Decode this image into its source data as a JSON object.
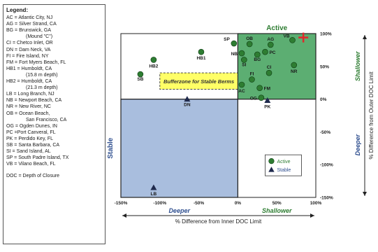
{
  "legend": {
    "title": "Legend:",
    "entries": [
      {
        "text": "AC = Atlantic City, NJ",
        "indent": false
      },
      {
        "text": "AG = Silver Strand, CA",
        "indent": false
      },
      {
        "text": "BG = Brunswick, GA",
        "indent": false
      },
      {
        "text": "(Mound \"C\")",
        "indent": true
      },
      {
        "text": "CI = Chetco Inlet, OR",
        "indent": false
      },
      {
        "text": "DN = Dam Neck, VA",
        "indent": false
      },
      {
        "text": "FI = Fire Island, NY",
        "indent": false
      },
      {
        "text": "FM = Fort Myers Beach, FL",
        "indent": false
      },
      {
        "text": "HB1 = Humboldt, CA",
        "indent": false
      },
      {
        "text": "(15.8 m depth)",
        "indent": true
      },
      {
        "text": "HB2 = Humboldt, CA",
        "indent": false
      },
      {
        "text": "(21.3 m depth)",
        "indent": true
      },
      {
        "text": "LB = Long Branch, NJ",
        "indent": false
      },
      {
        "text": "NB = Newport Beach, CA",
        "indent": false
      },
      {
        "text": "NR = New River, NC",
        "indent": false
      },
      {
        "text": "OB = Ocean Beach,",
        "indent": false
      },
      {
        "text": "San Francisco, CA",
        "indent": true
      },
      {
        "text": "OG = Ogden Dunes, IN",
        "indent": false
      },
      {
        "text": "PC =Port Canveral, FL",
        "indent": false
      },
      {
        "text": "PK = Perdido Key, FL",
        "indent": false
      },
      {
        "text": "SB = Santa Barbara, CA",
        "indent": false
      },
      {
        "text": "SI = Sand Island, AL",
        "indent": false
      },
      {
        "text": "SP = South Padre Island, TX",
        "indent": false
      },
      {
        "text": "VB = Vilano Beach, FL",
        "indent": false
      }
    ],
    "doc_note": "DOC = Depth of Closure"
  },
  "chart_data": {
    "type": "scatter",
    "xlim": [
      -150,
      100
    ],
    "ylim": [
      -150,
      100
    ],
    "xticks": [
      "-150%",
      "-100%",
      "-50%",
      "0%",
      "50%",
      "100%"
    ],
    "yticks": [
      "100%",
      "50%",
      "0%",
      "-50%",
      "-100%",
      "-150%"
    ],
    "xlabel": "% Difference from Inner DOC Limit",
    "ylabel": "% Difference from Outer DOC Limit",
    "x_left_label": "Deeper",
    "x_right_label": "Shallower",
    "y_top_label": "Shallower",
    "y_bottom_label": "Deeper",
    "regions": [
      {
        "label": "Active",
        "x": [
          0,
          100
        ],
        "y": [
          0,
          100
        ],
        "color": "#5cae72"
      },
      {
        "label": "Stable",
        "x": [
          -150,
          0
        ],
        "y": [
          -150,
          0
        ],
        "color": "#a9bede"
      },
      {
        "label": "Bufferzone for Stable Berms",
        "x": [
          -100,
          0
        ],
        "y": [
          15,
          40
        ],
        "color": "#ffff66"
      }
    ],
    "legend_items": [
      {
        "label": "Active",
        "marker": "circle",
        "color": "#2e7d32"
      },
      {
        "label": "Stable",
        "marker": "triangle",
        "color": "#1f2a4d"
      }
    ],
    "target_marker": {
      "x": 84,
      "y": 94,
      "color": "#e0282a"
    },
    "points": [
      {
        "label": "SP",
        "x": -5,
        "y": 85,
        "type": "active"
      },
      {
        "label": "OB",
        "x": 15,
        "y": 84,
        "type": "active"
      },
      {
        "label": "AG",
        "x": 42,
        "y": 83,
        "type": "active"
      },
      {
        "label": "VB",
        "x": 70,
        "y": 90,
        "type": "active"
      },
      {
        "label": "NB",
        "x": 5,
        "y": 70,
        "type": "active"
      },
      {
        "label": "BG",
        "x": 25,
        "y": 68,
        "type": "active"
      },
      {
        "label": "PC",
        "x": 35,
        "y": 72,
        "type": "active"
      },
      {
        "label": "SI",
        "x": 8,
        "y": 60,
        "type": "active"
      },
      {
        "label": "NR",
        "x": 72,
        "y": 52,
        "type": "active"
      },
      {
        "label": "CI",
        "x": 40,
        "y": 40,
        "type": "active"
      },
      {
        "label": "FI",
        "x": 18,
        "y": 30,
        "type": "active"
      },
      {
        "label": "AC",
        "x": 5,
        "y": 22,
        "type": "active"
      },
      {
        "label": "FM",
        "x": 28,
        "y": 17,
        "type": "active"
      },
      {
        "label": "OG",
        "x": 30,
        "y": 2,
        "type": "active"
      },
      {
        "label": "HB1",
        "x": -47,
        "y": 72,
        "type": "active"
      },
      {
        "label": "HB2",
        "x": -108,
        "y": 60,
        "type": "active"
      },
      {
        "label": "SB",
        "x": -125,
        "y": 38,
        "type": "active"
      },
      {
        "label": "DN",
        "x": -65,
        "y": 0,
        "type": "stable"
      },
      {
        "label": "PK",
        "x": 38,
        "y": -2,
        "type": "stable"
      },
      {
        "label": "LB",
        "x": -108,
        "y": -135,
        "type": "stable"
      }
    ]
  }
}
